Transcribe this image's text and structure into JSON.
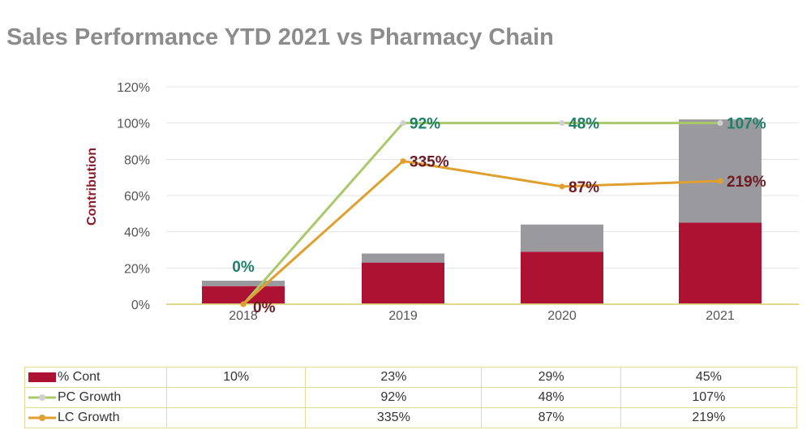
{
  "title": "Sales Performance YTD 2021 vs Pharmacy Chain",
  "chart_data": {
    "type": "bar",
    "stacked": true,
    "categories": [
      "2018",
      "2019",
      "2020",
      "2021"
    ],
    "ylabel": "Contribution",
    "xlabel": "",
    "ylim": [
      0,
      1.2
    ],
    "yticks": [
      "0%",
      "20%",
      "40%",
      "60%",
      "80%",
      "100%",
      "120%"
    ],
    "grid": true,
    "legend": "table-below",
    "series": [
      {
        "name": "% Cont",
        "type": "bar",
        "color": "#ad1233",
        "values": [
          0.1,
          0.23,
          0.29,
          0.45
        ],
        "labels": [
          "10%",
          "23%",
          "29%",
          "45%"
        ]
      },
      {
        "type": "bar",
        "color": "#9a9a9e",
        "values": [
          0.03,
          0.05,
          0.15,
          0.57
        ]
      },
      {
        "name": "PC Growth",
        "type": "line",
        "color": "#a9c96a",
        "marker_color": "#d0d0d0",
        "label_color": "#1e8068",
        "values": [
          0.0,
          1.0,
          1.0,
          1.0
        ],
        "labels": [
          "0%",
          "92%",
          "48%",
          "107%"
        ],
        "table": [
          "",
          "92%",
          "48%",
          "107%"
        ]
      },
      {
        "name": "LC Growth",
        "type": "line",
        "color": "#e0a030",
        "label_color": "#6e1b24",
        "values": [
          0.0,
          0.79,
          0.65,
          0.68
        ],
        "labels": [
          "0%",
          "335%",
          "87%",
          "219%"
        ],
        "table": [
          "",
          "335%",
          "87%",
          "219%"
        ]
      }
    ]
  }
}
